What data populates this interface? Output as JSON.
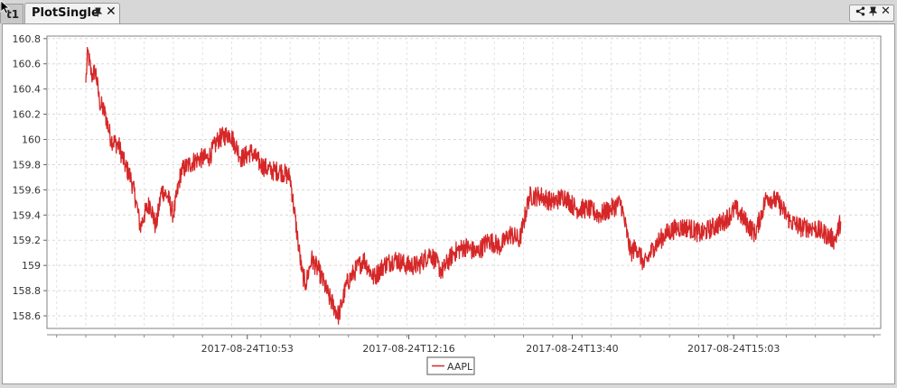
{
  "tabs": [
    {
      "label": "t1",
      "active": false
    },
    {
      "label": "PlotSingle",
      "active": true
    }
  ],
  "tab_icons": {
    "pin": "pin-icon",
    "close": "close-icon"
  },
  "window_controls": [
    "share-icon",
    "pin-icon",
    "close-icon"
  ],
  "chart_data": {
    "type": "line",
    "title": "",
    "xlabel": "",
    "ylabel": "",
    "x_range": [
      "2017-08-24T09:30",
      "2017-08-24T16:00"
    ],
    "ylim": [
      158.5,
      160.82
    ],
    "y_ticks": [
      158.6,
      158.8,
      159,
      159.2,
      159.4,
      159.6,
      159.8,
      160,
      160.2,
      160.4,
      160.6,
      160.8
    ],
    "y_tick_labels": [
      "158.6",
      "158.8",
      "159",
      "159.2",
      "159.4",
      "159.6",
      "159.8",
      "160",
      "160.2",
      "160.4",
      "160.6",
      "160.8"
    ],
    "x_ticks": [
      "2017-08-24T10:53",
      "2017-08-24T12:16",
      "2017-08-24T13:40",
      "2017-08-24T15:03"
    ],
    "x_tick_labels": [
      "2017-08-24T10:53",
      "2017-08-24T12:16",
      "2017-08-24T13:40",
      "2017-08-24T15:03"
    ],
    "grid": true,
    "legend_position": "bottom-center",
    "series": [
      {
        "name": "AAPL",
        "color": "#d62728",
        "x": [
          "2017-08-24T09:30",
          "2017-08-24T09:31",
          "2017-08-24T09:33",
          "2017-08-24T09:35",
          "2017-08-24T09:37",
          "2017-08-24T09:40",
          "2017-08-24T09:43",
          "2017-08-24T09:47",
          "2017-08-24T09:50",
          "2017-08-24T09:53",
          "2017-08-24T09:56",
          "2017-08-24T09:58",
          "2017-08-24T10:00",
          "2017-08-24T10:03",
          "2017-08-24T10:06",
          "2017-08-24T10:09",
          "2017-08-24T10:12",
          "2017-08-24T10:15",
          "2017-08-24T10:19",
          "2017-08-24T10:23",
          "2017-08-24T10:28",
          "2017-08-24T10:33",
          "2017-08-24T10:38",
          "2017-08-24T10:44",
          "2017-08-24T10:50",
          "2017-08-24T10:55",
          "2017-08-24T11:00",
          "2017-08-24T11:05",
          "2017-08-24T11:10",
          "2017-08-24T11:15",
          "2017-08-24T11:19",
          "2017-08-24T11:21",
          "2017-08-24T11:23",
          "2017-08-24T11:26",
          "2017-08-24T11:30",
          "2017-08-24T11:35",
          "2017-08-24T11:40",
          "2017-08-24T11:44",
          "2017-08-24T11:48",
          "2017-08-24T11:53",
          "2017-08-24T11:58",
          "2017-08-24T12:03",
          "2017-08-24T12:09",
          "2017-08-24T12:15",
          "2017-08-24T12:21",
          "2017-08-24T12:27",
          "2017-08-24T12:33",
          "2017-08-24T12:39",
          "2017-08-24T12:45",
          "2017-08-24T12:51",
          "2017-08-24T12:57",
          "2017-08-24T13:03",
          "2017-08-24T13:08",
          "2017-08-24T13:13",
          "2017-08-24T13:18",
          "2017-08-24T13:24",
          "2017-08-24T13:30",
          "2017-08-24T13:36",
          "2017-08-24T13:42",
          "2017-08-24T13:48",
          "2017-08-24T13:54",
          "2017-08-24T14:00",
          "2017-08-24T14:05",
          "2017-08-24T14:10",
          "2017-08-24T14:13",
          "2017-08-24T14:17",
          "2017-08-24T14:22",
          "2017-08-24T14:28",
          "2017-08-24T14:34",
          "2017-08-24T14:40",
          "2017-08-24T14:46",
          "2017-08-24T14:52",
          "2017-08-24T14:58",
          "2017-08-24T15:04",
          "2017-08-24T15:09",
          "2017-08-24T15:14",
          "2017-08-24T15:20",
          "2017-08-24T15:26",
          "2017-08-24T15:32",
          "2017-08-24T15:38",
          "2017-08-24T15:44",
          "2017-08-24T15:50",
          "2017-08-24T15:55",
          "2017-08-24T15:58"
        ],
        "values": [
          160.45,
          160.7,
          160.5,
          160.55,
          160.3,
          160.2,
          160.0,
          159.95,
          159.8,
          159.7,
          159.5,
          159.3,
          159.4,
          159.5,
          159.3,
          159.6,
          159.55,
          159.4,
          159.75,
          159.8,
          159.85,
          159.85,
          160.0,
          160.05,
          159.85,
          159.9,
          159.8,
          159.75,
          159.75,
          159.7,
          159.2,
          158.95,
          158.85,
          159.05,
          158.95,
          158.75,
          158.6,
          158.85,
          158.95,
          159.05,
          158.9,
          159.0,
          159.05,
          159.0,
          159.0,
          159.1,
          158.95,
          159.1,
          159.15,
          159.1,
          159.2,
          159.15,
          159.25,
          159.2,
          159.55,
          159.55,
          159.5,
          159.55,
          159.45,
          159.45,
          159.4,
          159.45,
          159.5,
          159.1,
          159.15,
          159.0,
          159.15,
          159.25,
          159.3,
          159.3,
          159.25,
          159.3,
          159.35,
          159.45,
          159.35,
          159.25,
          159.55,
          159.5,
          159.35,
          159.3,
          159.3,
          159.25,
          159.2,
          159.35
        ]
      }
    ]
  }
}
